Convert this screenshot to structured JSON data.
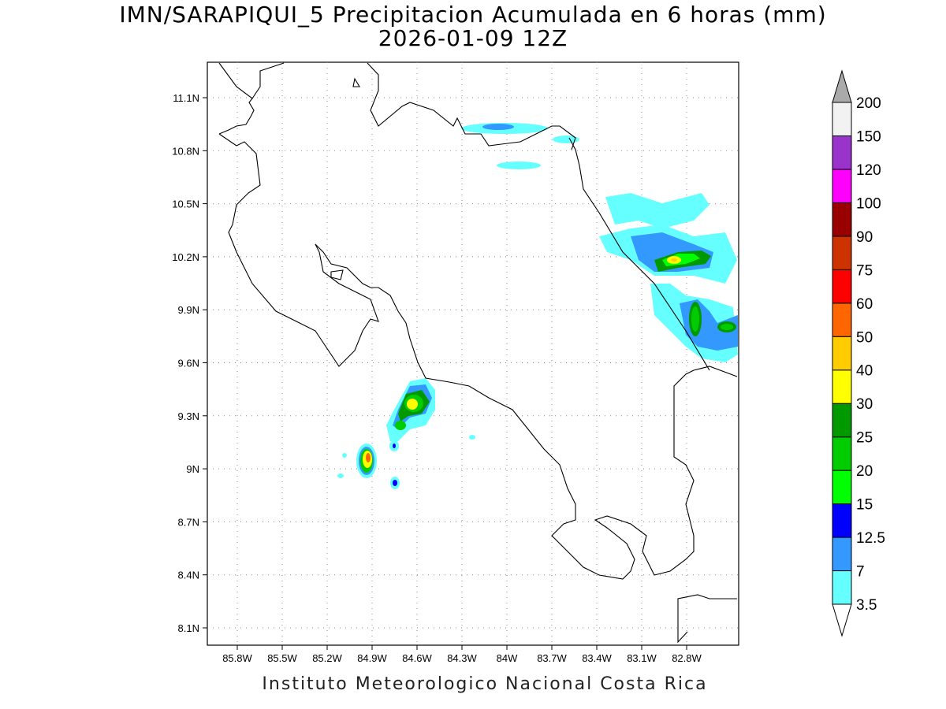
{
  "title": {
    "line1": "IMN/SARAPIQUI_5 Precipitacion Acumulada en 6 horas (mm)",
    "line2": "2026-01-09 12Z"
  },
  "footer": "Instituto Meteorologico Nacional Costa Rica",
  "map": {
    "lon_labels": [
      "85.8W",
      "85.5W",
      "85.2W",
      "84.9W",
      "84.6W",
      "84.3W",
      "84W",
      "83.7W",
      "83.4W",
      "83.1W",
      "82.8W"
    ],
    "lat_labels": [
      "11.1N",
      "10.8N",
      "10.5N",
      "10.2N",
      "9.9N",
      "9.6N",
      "9.3N",
      "9N",
      "8.7N",
      "8.4N",
      "8.1N"
    ],
    "lon_values": [
      -85.8,
      -85.5,
      -85.2,
      -84.9,
      -84.6,
      -84.3,
      -84.0,
      -83.7,
      -83.4,
      -83.1,
      -82.8
    ],
    "lat_values": [
      11.1,
      10.8,
      10.5,
      10.2,
      9.9,
      9.6,
      9.3,
      9.0,
      8.7,
      8.4,
      8.1
    ],
    "grid": "dotted"
  },
  "colorbar": {
    "levels": [
      "3.5",
      "7",
      "12.5",
      "15",
      "20",
      "25",
      "30",
      "40",
      "50",
      "60",
      "75",
      "90",
      "100",
      "120",
      "150",
      "200"
    ],
    "colors": [
      "#66ffff",
      "#3399ff",
      "#0000ff",
      "#00ff00",
      "#00cc00",
      "#009900",
      "#ffff00",
      "#ffcc00",
      "#ff6600",
      "#ff0000",
      "#cc3300",
      "#990000",
      "#ff00ff",
      "#9933cc",
      "#f2f2f2",
      "#aaaaaa"
    ],
    "over_color": "#aaaaaa",
    "under_color": "#ffffff"
  }
}
